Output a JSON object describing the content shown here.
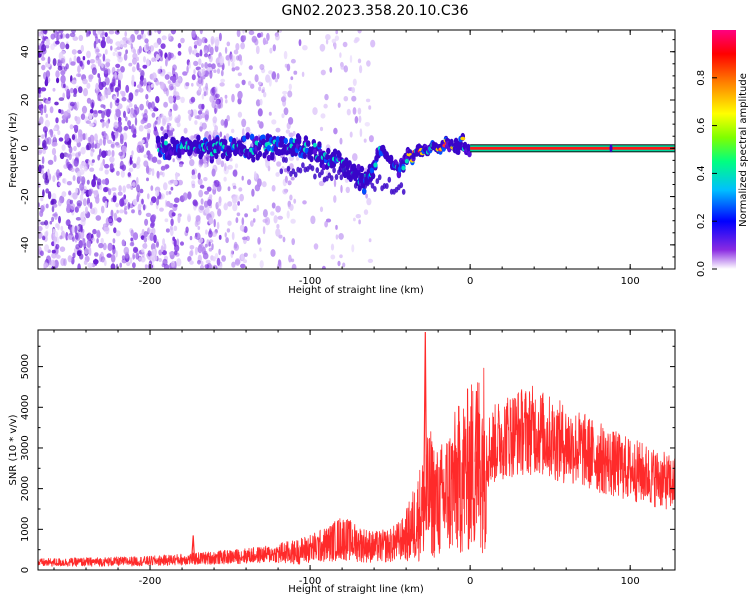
{
  "title": "GN02.2023.358.20.10.C36",
  "chart_data": [
    {
      "type": "heatmap",
      "xlabel": "Height of straight line (km)",
      "ylabel": "Frequency (Hz)",
      "xlim": [
        -270,
        128
      ],
      "ylim": [
        -50,
        49
      ],
      "xticks": [
        "-200",
        "-100",
        "0",
        "100"
      ],
      "xtick_values": [
        -200,
        -100,
        0,
        100
      ],
      "yticks": [
        "40",
        "20",
        "0",
        "-20",
        "-40"
      ],
      "ytick_values": [
        40,
        20,
        0,
        -20,
        -40
      ],
      "colorbar": {
        "label": "Normalized spectral amplitude",
        "ticks": [
          "0.0",
          "0.2",
          "0.4",
          "0.6",
          "0.8"
        ],
        "tick_values": [
          0.0,
          0.2,
          0.4,
          0.6,
          0.8
        ],
        "range": [
          0,
          1
        ]
      },
      "noise_region_x": [
        -270,
        -60
      ],
      "signal_track": [
        {
          "x": -195,
          "y": 0
        },
        {
          "x": -150,
          "y": 0
        },
        {
          "x": -110,
          "y": 1
        },
        {
          "x": -100,
          "y": 0
        },
        {
          "x": -80,
          "y": -7
        },
        {
          "x": -65,
          "y": -14
        },
        {
          "x": -55,
          "y": 1
        },
        {
          "x": -45,
          "y": -10
        },
        {
          "x": -38,
          "y": -3
        },
        {
          "x": -20,
          "y": 0
        },
        {
          "x": -5,
          "y": 2
        },
        {
          "x": 0,
          "y": 0
        },
        {
          "x": 128,
          "y": 0
        }
      ]
    },
    {
      "type": "line",
      "xlabel": "Height of straight line (km)",
      "ylabel": "SNR (10 * v/v)",
      "xlim": [
        -270,
        128
      ],
      "ylim": [
        0,
        5900
      ],
      "xticks": [
        "-200",
        "-100",
        "0",
        "100"
      ],
      "xtick_values": [
        -200,
        -100,
        0,
        100
      ],
      "yticks": [
        "0",
        "1000",
        "2000",
        "3000",
        "4000",
        "5000"
      ],
      "ytick_values": [
        0,
        1000,
        2000,
        3000,
        4000,
        5000
      ],
      "color": "#ff2a2a",
      "envelope": [
        {
          "x": -270,
          "y": 180
        },
        {
          "x": -200,
          "y": 220
        },
        {
          "x": -150,
          "y": 320
        },
        {
          "x": -110,
          "y": 430
        },
        {
          "x": -90,
          "y": 620
        },
        {
          "x": -80,
          "y": 800
        },
        {
          "x": -70,
          "y": 650
        },
        {
          "x": -60,
          "y": 560
        },
        {
          "x": -50,
          "y": 600
        },
        {
          "x": -40,
          "y": 800
        },
        {
          "x": -34,
          "y": 1200
        },
        {
          "x": -30,
          "y": 1500
        },
        {
          "x": -25,
          "y": 1900
        },
        {
          "x": -20,
          "y": 1600
        },
        {
          "x": -10,
          "y": 2100
        },
        {
          "x": 0,
          "y": 2500
        },
        {
          "x": 10,
          "y": 2900
        },
        {
          "x": 20,
          "y": 3250
        },
        {
          "x": 30,
          "y": 3400
        },
        {
          "x": 40,
          "y": 3450
        },
        {
          "x": 50,
          "y": 3250
        },
        {
          "x": 70,
          "y": 2950
        },
        {
          "x": 90,
          "y": 2600
        },
        {
          "x": 110,
          "y": 2350
        },
        {
          "x": 128,
          "y": 2100
        }
      ],
      "spikes": [
        {
          "x": -28,
          "y": 5850
        },
        {
          "x": 4,
          "y": 4400
        },
        {
          "x": -173,
          "y": 850
        }
      ]
    }
  ]
}
